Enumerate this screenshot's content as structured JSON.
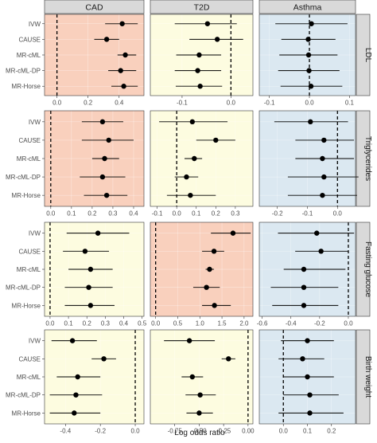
{
  "chart_data": {
    "type": "forest",
    "xlabel": "Log odds ratio",
    "methods": [
      "IVW",
      "CAUSE",
      "MR-cML",
      "MR-cML-DP",
      "MR-Horse"
    ],
    "outcomes": [
      "CAD",
      "T2D",
      "Asthma"
    ],
    "exposures": [
      "LDL",
      "Triglycerides",
      "Fasting glucose",
      "Birth weight"
    ],
    "colors": {
      "protective": "#dbe8f1",
      "neutral": "#fdfce0",
      "risk": "#f9d0bd"
    },
    "panels": [
      {
        "exposure": "LDL",
        "outcome": "CAD",
        "fill": "risk",
        "xlim": [
          -0.08,
          0.56
        ],
        "ticks": [
          0.0,
          0.2,
          0.4
        ],
        "tick_labels": [
          "0.0",
          "0.2",
          "0.4"
        ],
        "estimates": [
          0.42,
          0.32,
          0.44,
          0.41,
          0.43
        ],
        "lower": [
          0.31,
          0.24,
          0.39,
          0.33,
          0.35
        ],
        "upper": [
          0.52,
          0.4,
          0.51,
          0.51,
          0.52
        ]
      },
      {
        "exposure": "LDL",
        "outcome": "T2D",
        "fill": "neutral",
        "xlim": [
          -0.165,
          0.045
        ],
        "ticks": [
          -0.1,
          0.0
        ],
        "tick_labels": [
          "-0.1",
          "0.0"
        ],
        "estimates": [
          -0.048,
          -0.028,
          -0.065,
          -0.068,
          -0.063
        ],
        "lower": [
          -0.115,
          -0.085,
          -0.112,
          -0.115,
          -0.113
        ],
        "upper": [
          0.012,
          0.025,
          -0.02,
          -0.02,
          -0.018
        ]
      },
      {
        "exposure": "LDL",
        "outcome": "Asthma",
        "fill": "protective",
        "xlim": [
          -0.125,
          0.115
        ],
        "ticks": [
          -0.1,
          0.0,
          0.1
        ],
        "tick_labels": [
          "-0.1",
          "0.0",
          "0.1"
        ],
        "estimates": [
          0.005,
          -0.003,
          -0.002,
          -0.001,
          0.004
        ],
        "lower": [
          -0.085,
          -0.07,
          -0.075,
          -0.078,
          -0.072
        ],
        "upper": [
          0.095,
          0.065,
          0.07,
          0.075,
          0.082
        ]
      },
      {
        "exposure": "Triglycerides",
        "outcome": "CAD",
        "fill": "risk",
        "xlim": [
          -0.03,
          0.45
        ],
        "ticks": [
          0.0,
          0.1,
          0.2,
          0.3,
          0.4
        ],
        "tick_labels": [
          "0.0",
          "0.1",
          "0.2",
          "0.3",
          "0.4"
        ],
        "estimates": [
          0.25,
          0.28,
          0.26,
          0.25,
          0.27
        ],
        "lower": [
          0.15,
          0.15,
          0.2,
          0.14,
          0.16
        ],
        "upper": [
          0.35,
          0.4,
          0.33,
          0.36,
          0.37
        ]
      },
      {
        "exposure": "Triglycerides",
        "outcome": "T2D",
        "fill": "neutral",
        "xlim": [
          -0.135,
          0.39
        ],
        "ticks": [
          -0.1,
          0.0,
          0.1,
          0.2,
          0.3
        ],
        "tick_labels": [
          "-0.1",
          "0.0",
          "0.1",
          "0.2",
          "0.3"
        ],
        "estimates": [
          0.08,
          0.2,
          0.09,
          0.05,
          0.07
        ],
        "lower": [
          -0.09,
          0.1,
          0.04,
          -0.01,
          -0.05
        ],
        "upper": [
          0.26,
          0.3,
          0.13,
          0.11,
          0.2
        ]
      },
      {
        "exposure": "Triglycerides",
        "outcome": "Asthma",
        "fill": "protective",
        "xlim": [
          -0.26,
          0.06
        ],
        "ticks": [
          -0.2,
          -0.1,
          0.0
        ],
        "tick_labels": [
          "-0.2",
          "-0.1",
          "0.0"
        ],
        "estimates": [
          -0.09,
          -0.045,
          -0.05,
          -0.045,
          -0.05
        ],
        "lower": [
          -0.21,
          -0.14,
          -0.14,
          -0.165,
          -0.165
        ],
        "upper": [
          0.035,
          0.055,
          0.055,
          0.07,
          0.065
        ]
      },
      {
        "exposure": "Fasting glucose",
        "outcome": "CAD",
        "fill": "neutral",
        "xlim": [
          -0.03,
          0.51
        ],
        "ticks": [
          0.0,
          0.1,
          0.2,
          0.3,
          0.4,
          0.5
        ],
        "tick_labels": [
          "0.0",
          "0.1",
          "0.2",
          "0.3",
          "0.4",
          "0.5"
        ],
        "estimates": [
          0.26,
          0.19,
          0.22,
          0.21,
          0.22
        ],
        "lower": [
          0.09,
          0.07,
          0.1,
          0.08,
          0.08
        ],
        "upper": [
          0.43,
          0.32,
          0.34,
          0.34,
          0.35
        ]
      },
      {
        "exposure": "Fasting glucose",
        "outcome": "T2D",
        "fill": "risk",
        "xlim": [
          -0.12,
          2.2
        ],
        "ticks": [
          0.0,
          0.5,
          1.0,
          1.5,
          2.0
        ],
        "tick_labels": [
          "0.0",
          "0.5",
          "1.0",
          "1.5",
          "2.0"
        ],
        "estimates": [
          1.75,
          1.32,
          1.22,
          1.15,
          1.33
        ],
        "lower": [
          1.25,
          1.05,
          1.13,
          0.85,
          1.05
        ],
        "upper": [
          2.15,
          1.55,
          1.32,
          1.45,
          1.7
        ]
      },
      {
        "exposure": "Fasting glucose",
        "outcome": "Asthma",
        "fill": "protective",
        "xlim": [
          -0.62,
          0.05
        ],
        "ticks": [
          -0.6,
          -0.4,
          -0.2,
          0.0
        ],
        "tick_labels": [
          "-0.6",
          "-0.4",
          "-0.2",
          "0.0"
        ],
        "estimates": [
          -0.22,
          -0.19,
          -0.31,
          -0.31,
          -0.31
        ],
        "lower": [
          -0.49,
          -0.37,
          -0.45,
          -0.54,
          -0.53
        ],
        "upper": [
          0.04,
          0.0,
          -0.02,
          -0.07,
          -0.07
        ]
      },
      {
        "exposure": "Birth weight",
        "outcome": "CAD",
        "fill": "neutral",
        "xlim": [
          -0.52,
          0.05
        ],
        "ticks": [
          -0.4,
          -0.2,
          0.0
        ],
        "tick_labels": [
          "-0.4",
          "-0.2",
          "0.0"
        ],
        "estimates": [
          -0.36,
          -0.18,
          -0.33,
          -0.34,
          -0.35
        ],
        "lower": [
          -0.48,
          -0.25,
          -0.45,
          -0.49,
          -0.49
        ],
        "upper": [
          -0.22,
          -0.11,
          -0.2,
          -0.19,
          -0.2
        ]
      },
      {
        "exposure": "Birth weight",
        "outcome": "T2D",
        "fill": "neutral",
        "xlim": [
          -1.0,
          0.05
        ],
        "ticks": [
          -0.75,
          -0.5,
          -0.25,
          0.0
        ],
        "tick_labels": [
          "-0.75",
          "-0.50",
          "-0.25",
          "0.00"
        ],
        "estimates": [
          -0.6,
          -0.2,
          -0.57,
          -0.49,
          -0.5
        ],
        "lower": [
          -0.86,
          -0.27,
          -0.68,
          -0.64,
          -0.63
        ],
        "upper": [
          -0.34,
          -0.13,
          -0.46,
          -0.33,
          -0.36
        ]
      },
      {
        "exposure": "Birth weight",
        "outcome": "Asthma",
        "fill": "protective",
        "xlim": [
          -0.1,
          0.3
        ],
        "ticks": [
          0.0,
          0.1,
          0.2
        ],
        "tick_labels": [
          "0.0",
          "0.1",
          "0.2"
        ],
        "estimates": [
          0.1,
          0.08,
          0.1,
          0.11,
          0.11
        ],
        "lower": [
          -0.01,
          -0.02,
          0.0,
          0.0,
          -0.02
        ],
        "upper": [
          0.21,
          0.17,
          0.21,
          0.23,
          0.25
        ]
      }
    ]
  }
}
